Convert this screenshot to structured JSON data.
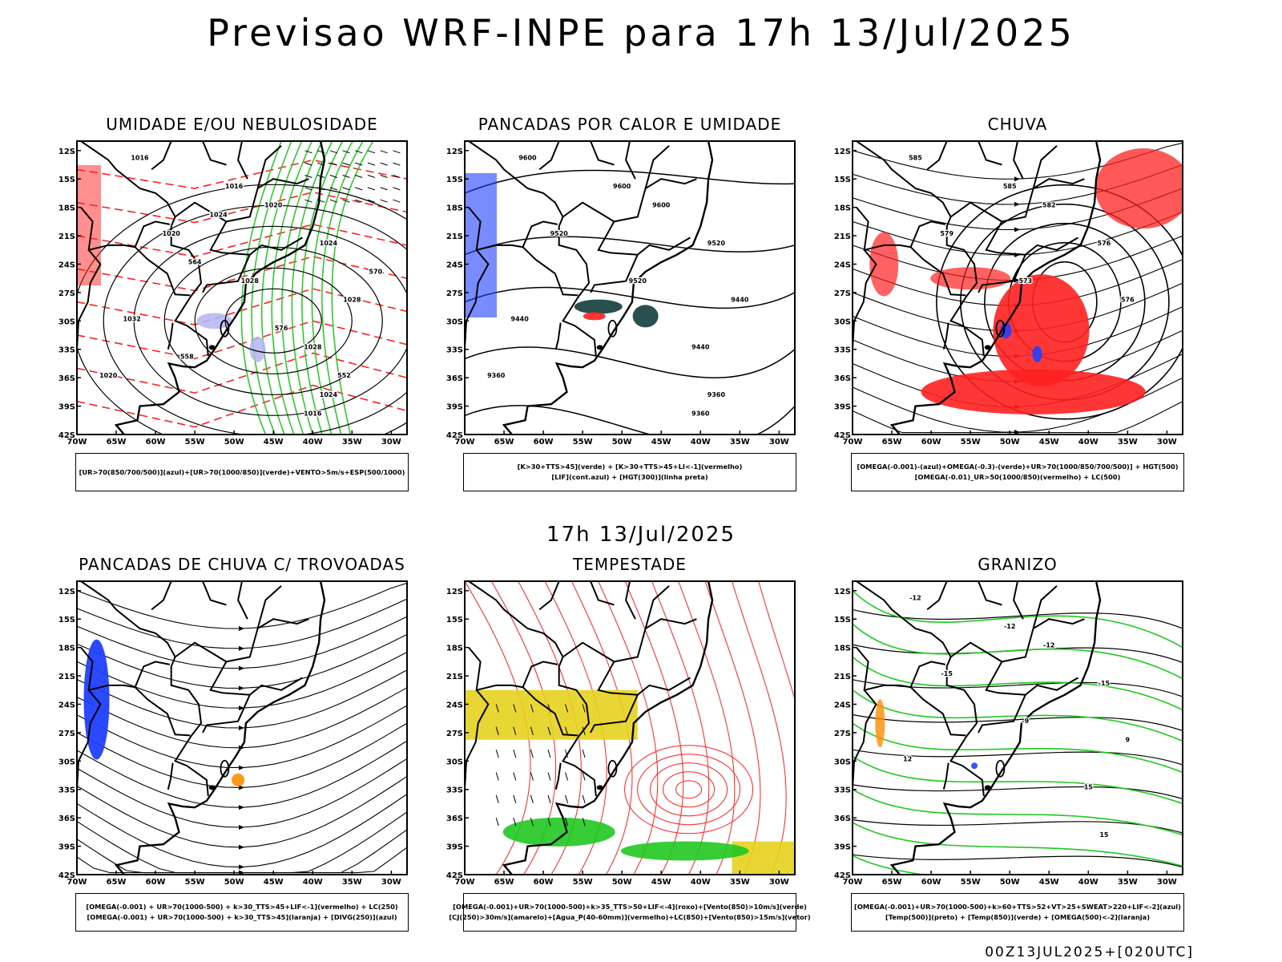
{
  "header": {
    "title": "Previsao WRF-INPE  para 17h 13/Jul/2025",
    "subtitle": "17h 13/Jul/2025",
    "stamp": "00Z13JUL2025+[020UTC]"
  },
  "axes": {
    "lat_labels": [
      "12S",
      "15S",
      "18S",
      "21S",
      "24S",
      "27S",
      "30S",
      "33S",
      "36S",
      "39S",
      "42S"
    ],
    "lon_labels": [
      "70W",
      "65W",
      "60W",
      "55W",
      "50W",
      "45W",
      "40W",
      "35W",
      "30W"
    ]
  },
  "colors": {
    "red": "#ff2020",
    "green": "#20c820",
    "blue": "#2040ff",
    "yellow": "#e6d21e",
    "lavender": "#b4b4f0",
    "orange": "#ff8c00",
    "darkteal": "#1e4646"
  },
  "panels": [
    {
      "id": "umidade",
      "title": "UMIDADE E/OU NEBULOSIDADE",
      "legend": [
        "[UR>70(850/700/500)](azul)+[UR>70(1000/850)](verde)+VENTO>5m/s+ESP(500/1000)"
      ],
      "labels": [
        "1016",
        "1016",
        "1020",
        "1020",
        "1024",
        "1028",
        "1028",
        "1032",
        "1028",
        "1024",
        "1016",
        "1020",
        "1024",
        "564",
        "570",
        "576",
        "558",
        "552"
      ]
    },
    {
      "id": "pancadas-calor",
      "title": "PANCADAS POR CALOR E UMIDADE",
      "legend": [
        "[K>30+TTS>45](verde) + [K>30+TTS>45+LI<-1](vermelho)",
        "[LIF](cont.azul) + [HGT(300)](linha preta)"
      ],
      "labels": [
        "9600",
        "9600",
        "9600",
        "9520",
        "9520",
        "9520",
        "9440",
        "9440",
        "9440",
        "9360",
        "9360",
        "9360"
      ]
    },
    {
      "id": "chuva",
      "title": "CHUVA",
      "legend": [
        "[OMEGA(-0.001)-(azul)+OMEGA(-0.3)-(verde)+UR>70(1000/850/700/500)] + HGT(500)",
        "[OMEGA(-0.01)_UR>50(1000/850)(vermelho) + LC(500)"
      ],
      "labels": [
        "585",
        "585",
        "582",
        "579",
        "576",
        "573",
        "576"
      ]
    },
    {
      "id": "trovoadas",
      "title": "PANCADAS DE CHUVA C/ TROVOADAS",
      "legend": [
        "[OMEGA(-0.001) + UR>70(1000-500) + k>30_TTS>45+LIF<-1](vermelho) + LC(250)",
        "[OMEGA(-0.001) + UR>70(1000-500) + k>30_TTS>45](laranja) + [DIVG(250)](azul)"
      ],
      "labels": []
    },
    {
      "id": "tempestade",
      "title": "TEMPESTADE",
      "legend": [
        "[OMEGA(-0.001)+UR>70(1000-500)+k>35_TTS>50+LIF<-4](roxo)+[Vento(850)>10m/s](verde)",
        "[CJ(250)>30m/s](amarelo)+[Agua_P(40-60mm)](vermelho)+LC(850)+[Vento(850)>15m/s](vetor)"
      ],
      "labels": []
    },
    {
      "id": "granizo",
      "title": "GRANIZO",
      "legend": [
        "[OMEGA(-0.001)+UR>70(1000-500)+k>60+TTS>52+VT>25+SWEAT>220+LIF<-2](azul)",
        "[Temp(500)](preto) + [Temp(850)](verde) + [OMEGA(500)<-2](laranja)"
      ],
      "labels": [
        "-12",
        "-12",
        "-12",
        "-15",
        "-15",
        "-9",
        "9",
        "12",
        "15",
        "15"
      ]
    }
  ]
}
